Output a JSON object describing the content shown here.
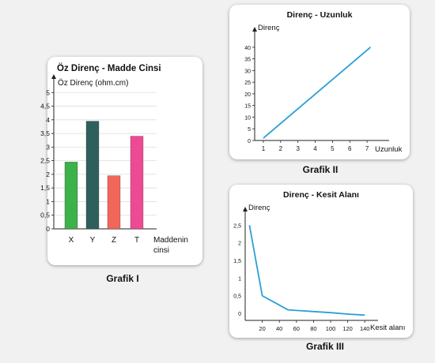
{
  "chart_data": [
    {
      "type": "bar",
      "title": "Öz Direnç - Madde Cinsi",
      "ylabel": "Öz Direnç (ohm.cm)",
      "xlabel_line1": "Maddenin",
      "xlabel_line2": "cinsi",
      "categories": [
        "X",
        "Y",
        "Z",
        "T"
      ],
      "values": [
        2.45,
        3.95,
        1.95,
        3.4
      ],
      "colors": [
        "#3db14a",
        "#2f5f5c",
        "#f2665a",
        "#ee4a93"
      ],
      "ylim": [
        0,
        5.5
      ],
      "yticks": [
        0,
        0.5,
        1,
        1.5,
        2,
        2.5,
        3,
        3.5,
        4,
        4.5,
        5
      ],
      "ytick_labels": [
        "0",
        "0,5",
        "1",
        "1,5",
        "2",
        "2,5",
        "3",
        "3,5",
        "4",
        "4,5",
        "5"
      ],
      "grid": true,
      "caption": "Grafik I"
    },
    {
      "type": "line",
      "title": "Direnç - Uzunluk",
      "ylabel": "Direnç",
      "xlabel": "Uzunluk",
      "x": [
        1,
        7.2
      ],
      "y": [
        1,
        40
      ],
      "xlim": [
        0.5,
        8
      ],
      "ylim": [
        0,
        44
      ],
      "xticks": [
        1,
        2,
        3,
        4,
        5,
        6,
        7
      ],
      "yticks": [
        0,
        5,
        10,
        15,
        20,
        25,
        30,
        35,
        40
      ],
      "color": "#2a9fd6",
      "grid": false,
      "caption": "Grafik II"
    },
    {
      "type": "line",
      "title": "Direnç - Kesit Alanı",
      "ylabel": "Direnç",
      "xlabel": "Kesit alanı",
      "x": [
        5,
        20,
        50,
        80,
        100,
        120,
        140
      ],
      "y": [
        2.5,
        0.5,
        0.1,
        0.05,
        0.02,
        -0.02,
        -0.05
      ],
      "xlim": [
        0,
        150
      ],
      "ylim": [
        -0.2,
        2.8
      ],
      "xticks": [
        20,
        40,
        60,
        80,
        100,
        120,
        140
      ],
      "yticks": [
        0,
        0.5,
        1,
        1.5,
        2,
        2.5
      ],
      "ytick_labels": [
        "0",
        "0,5",
        "1",
        "1,5",
        "2",
        "2,5"
      ],
      "color": "#2a9fd6",
      "grid": false,
      "caption": "Grafik III"
    }
  ]
}
